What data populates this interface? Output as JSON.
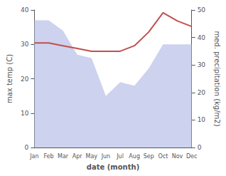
{
  "chart_data": {
    "type": "line",
    "categories": [
      "Jan",
      "Feb",
      "Mar",
      "Apr",
      "May",
      "Jun",
      "Jul",
      "Aug",
      "Sep",
      "Oct",
      "Nov",
      "Dec"
    ],
    "series": [
      {
        "type": "area",
        "color": "#b8bfe8",
        "values": [
          37,
          37,
          34,
          27,
          26,
          15,
          19,
          18,
          23,
          30,
          30,
          30
        ]
      },
      {
        "type": "line",
        "color": "#c0504d",
        "axis": "y2",
        "values": [
          38,
          38,
          37,
          36,
          35,
          35,
          35,
          37,
          42,
          49,
          46,
          44
        ]
      }
    ],
    "xlabel": "date (month)",
    "ylabel": "max temp (C)",
    "y2label": "med. precipitation (kg/m2)",
    "ylim": [
      0,
      40
    ],
    "yticks": [
      0,
      10,
      20,
      30,
      40
    ],
    "y2lim": [
      0,
      50
    ],
    "y2ticks": [
      0,
      10,
      20,
      30,
      40,
      50
    ],
    "grid": false
  }
}
